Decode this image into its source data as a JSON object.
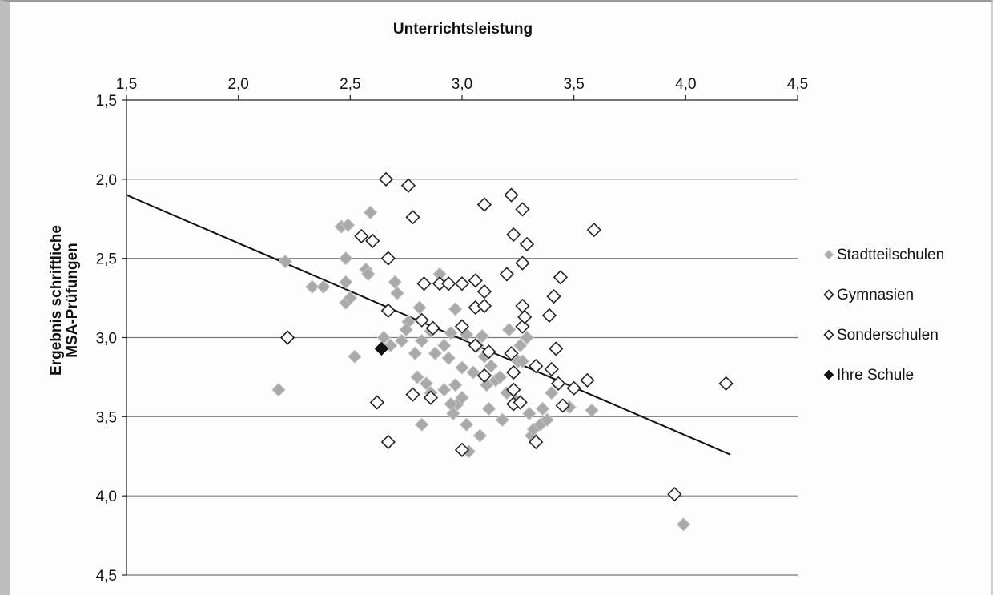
{
  "chart_data": {
    "type": "scatter",
    "title": "Unterrichtsleistung",
    "ylabel_line1": "Ergebnis schriftliche",
    "ylabel_line2": "MSA-Prüfungen",
    "xlim": [
      1.5,
      4.5
    ],
    "ylim": [
      1.5,
      4.5
    ],
    "y_inverted": true,
    "x_axis_position": "top",
    "x_ticks": [
      "1,5",
      "2,0",
      "2,5",
      "3,0",
      "3,5",
      "4,0",
      "4,5"
    ],
    "y_ticks": [
      "1,5",
      "2,0",
      "2,5",
      "3,0",
      "3,5",
      "4,0",
      "4,5"
    ],
    "grid": "horizontal",
    "legend_position": "right",
    "colors": {
      "stadtteilschulen": "#a9a9a9",
      "gymnasien": "#222222",
      "sonderschulen": "#222222",
      "ihre_schule": "#111111",
      "trendline": "#111111",
      "grid": "#7a7a7a"
    },
    "legend": [
      {
        "name": "Stadtteilschulen",
        "marker": "diamond-filled-gray"
      },
      {
        "name": "Gymnasien",
        "marker": "diamond-open"
      },
      {
        "name": "Sonderschulen",
        "marker": "diamond-open"
      },
      {
        "name": "Ihre Schule",
        "marker": "diamond-filled-black"
      }
    ],
    "trendline": {
      "x": [
        1.5,
        4.2
      ],
      "y": [
        2.1,
        3.74
      ]
    },
    "series": [
      {
        "name": "Stadtteilschulen",
        "points": [
          [
            2.18,
            3.33
          ],
          [
            2.21,
            2.52
          ],
          [
            2.33,
            2.68
          ],
          [
            2.38,
            2.68
          ],
          [
            2.46,
            2.3
          ],
          [
            2.49,
            2.29
          ],
          [
            2.48,
            2.5
          ],
          [
            2.48,
            2.65
          ],
          [
            2.48,
            2.78
          ],
          [
            2.5,
            2.75
          ],
          [
            2.52,
            3.12
          ],
          [
            2.57,
            2.57
          ],
          [
            2.59,
            2.21
          ],
          [
            2.65,
            3.0
          ],
          [
            2.68,
            3.05
          ],
          [
            2.7,
            2.65
          ],
          [
            2.71,
            2.72
          ],
          [
            2.73,
            3.02
          ],
          [
            2.76,
            2.9
          ],
          [
            2.79,
            3.1
          ],
          [
            2.8,
            3.25
          ],
          [
            2.81,
            2.81
          ],
          [
            2.82,
            3.02
          ],
          [
            2.82,
            3.55
          ],
          [
            2.84,
            3.29
          ],
          [
            2.86,
            2.96
          ],
          [
            2.88,
            3.1
          ],
          [
            2.9,
            2.6
          ],
          [
            2.92,
            3.33
          ],
          [
            2.92,
            3.05
          ],
          [
            2.94,
            3.13
          ],
          [
            2.95,
            2.97
          ],
          [
            2.96,
            3.48
          ],
          [
            2.97,
            3.3
          ],
          [
            2.97,
            2.82
          ],
          [
            2.98,
            3.42
          ],
          [
            3.0,
            3.38
          ],
          [
            3.0,
            3.19
          ],
          [
            3.02,
            2.98
          ],
          [
            3.02,
            3.55
          ],
          [
            3.03,
            3.72
          ],
          [
            3.05,
            3.22
          ],
          [
            3.07,
            3.05
          ],
          [
            3.08,
            3.62
          ],
          [
            3.09,
            2.99
          ],
          [
            3.1,
            3.12
          ],
          [
            3.11,
            3.3
          ],
          [
            3.13,
            3.18
          ],
          [
            3.15,
            3.27
          ],
          [
            3.17,
            3.25
          ],
          [
            3.18,
            3.52
          ],
          [
            3.2,
            3.35
          ],
          [
            3.21,
            2.95
          ],
          [
            3.23,
            3.42
          ],
          [
            3.24,
            3.4
          ],
          [
            3.25,
            3.15
          ],
          [
            3.27,
            3.15
          ],
          [
            3.29,
            3.0
          ],
          [
            3.3,
            3.48
          ],
          [
            3.31,
            3.62
          ],
          [
            3.32,
            3.58
          ],
          [
            3.35,
            3.55
          ],
          [
            3.36,
            3.45
          ],
          [
            3.38,
            3.52
          ],
          [
            3.4,
            3.35
          ],
          [
            3.48,
            3.44
          ],
          [
            3.58,
            3.46
          ],
          [
            3.99,
            4.18
          ],
          [
            2.58,
            2.6
          ],
          [
            2.75,
            2.95
          ],
          [
            2.86,
            3.35
          ],
          [
            3.12,
            3.45
          ],
          [
            2.95,
            3.42
          ],
          [
            3.26,
            3.05
          ]
        ]
      },
      {
        "name": "Gymnasien",
        "points": [
          [
            2.22,
            3.0
          ],
          [
            2.55,
            2.36
          ],
          [
            2.6,
            2.39
          ],
          [
            2.62,
            3.41
          ],
          [
            2.66,
            2.0
          ],
          [
            2.67,
            2.5
          ],
          [
            2.67,
            2.83
          ],
          [
            2.67,
            3.66
          ],
          [
            2.76,
            2.04
          ],
          [
            2.78,
            2.24
          ],
          [
            2.78,
            3.36
          ],
          [
            2.82,
            2.89
          ],
          [
            2.83,
            2.66
          ],
          [
            2.86,
            3.38
          ],
          [
            2.87,
            2.94
          ],
          [
            2.9,
            2.66
          ],
          [
            2.94,
            2.66
          ],
          [
            3.0,
            2.66
          ],
          [
            3.0,
            2.93
          ],
          [
            3.0,
            3.71
          ],
          [
            3.06,
            2.64
          ],
          [
            3.06,
            2.81
          ],
          [
            3.06,
            3.05
          ],
          [
            3.1,
            2.16
          ],
          [
            3.1,
            2.71
          ],
          [
            3.1,
            2.8
          ],
          [
            3.1,
            3.24
          ],
          [
            3.12,
            3.09
          ],
          [
            3.2,
            2.6
          ],
          [
            3.22,
            2.1
          ],
          [
            3.22,
            3.1
          ],
          [
            3.23,
            2.35
          ],
          [
            3.23,
            3.22
          ],
          [
            3.23,
            3.33
          ],
          [
            3.23,
            3.42
          ],
          [
            3.26,
            3.41
          ],
          [
            3.27,
            2.19
          ],
          [
            3.27,
            2.53
          ],
          [
            3.27,
            2.8
          ],
          [
            3.27,
            2.93
          ],
          [
            3.28,
            2.87
          ],
          [
            3.29,
            2.41
          ],
          [
            3.33,
            3.18
          ],
          [
            3.33,
            3.66
          ],
          [
            3.39,
            2.86
          ],
          [
            3.4,
            3.2
          ],
          [
            3.41,
            2.74
          ],
          [
            3.42,
            3.07
          ],
          [
            3.43,
            3.29
          ],
          [
            3.44,
            2.62
          ],
          [
            3.45,
            3.43
          ],
          [
            3.5,
            3.32
          ],
          [
            3.56,
            3.27
          ],
          [
            3.59,
            2.32
          ],
          [
            3.95,
            3.99
          ],
          [
            4.18,
            3.29
          ]
        ]
      },
      {
        "name": "Ihre Schule",
        "points": [
          [
            2.64,
            3.07
          ]
        ]
      }
    ]
  }
}
